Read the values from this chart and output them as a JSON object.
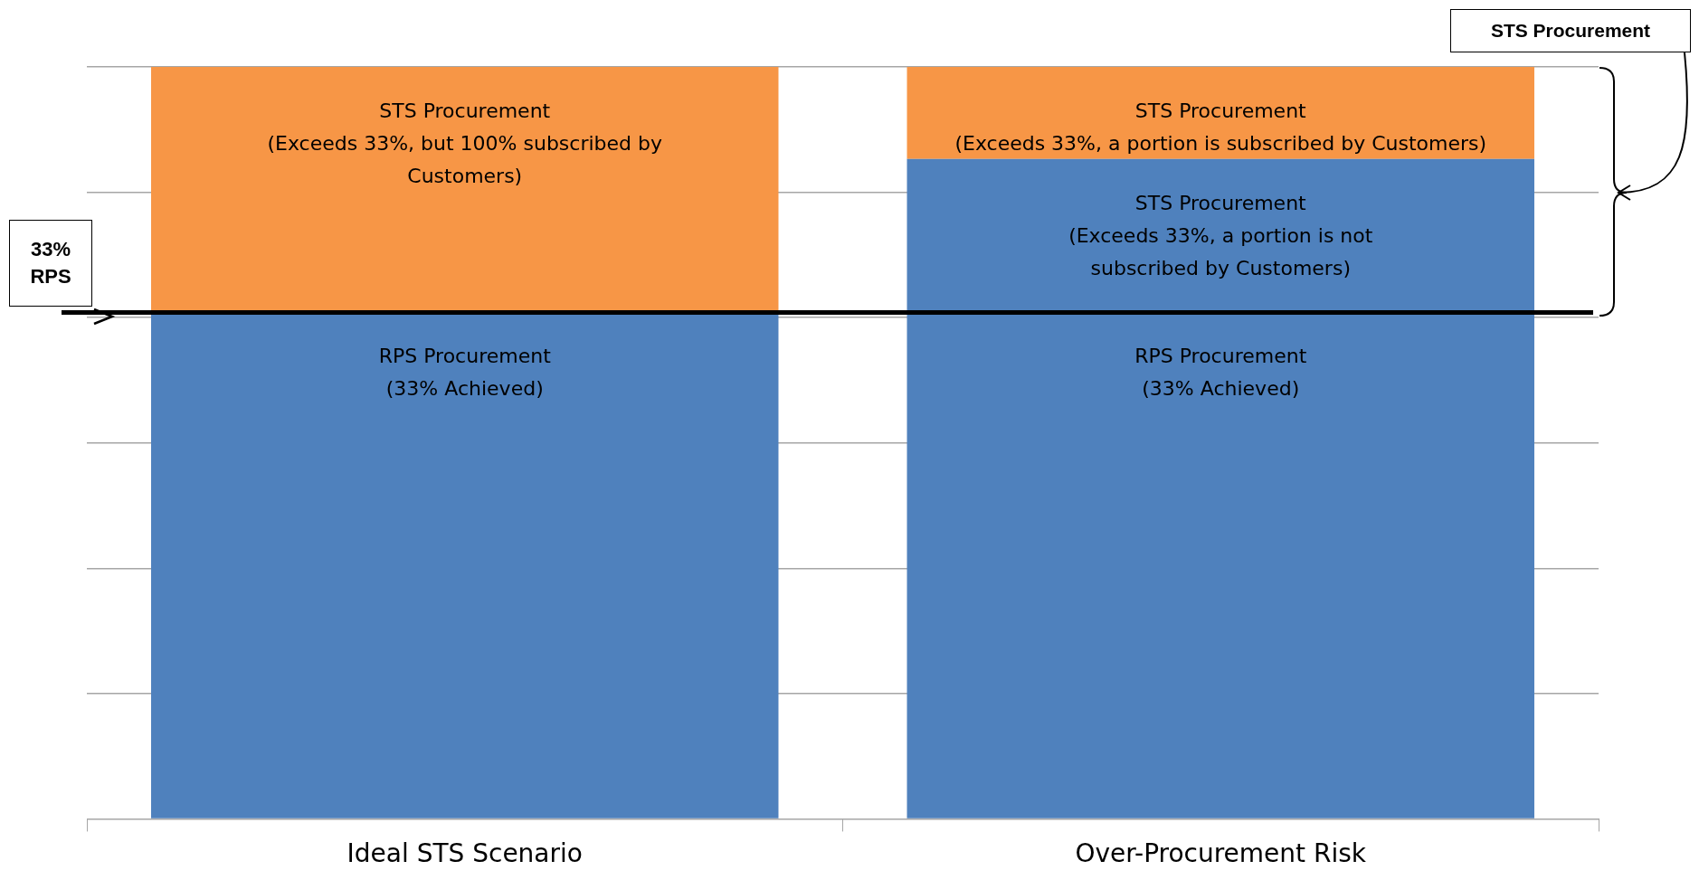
{
  "chart_data": {
    "type": "bar",
    "stacked": true,
    "tick_labels": "x",
    "grid": "y",
    "categories": [
      "Ideal STS Scenario",
      "Over-Procurement Risk"
    ],
    "series": [
      {
        "color": "#4f81bd",
        "values": [
          33,
          33
        ],
        "value_labels": [
          "RPS Procurement\n(33% Achieved)",
          "RPS Procurement\n(33% Achieved)"
        ]
      },
      {
        "color": "#4f81bd",
        "values": [
          0,
          10
        ]
      },
      {
        "color": "#f79646",
        "values": [
          16,
          6
        ]
      }
    ],
    "ref_lines": [
      {
        "axis": "y",
        "value": 33,
        "label": "33% RPS",
        "color": "#000000"
      }
    ],
    "annotations": [
      {
        "text": "STS Procurement\n(Exceeds 33%, but 100% subscribed by\nCustomers)",
        "x": "Ideal STS Scenario",
        "y": 49
      },
      {
        "text": "STS Procurement\n(Exceeds 33%, a portion is not\nsubscribed by Customers)",
        "x": "Over-Procurement Risk",
        "y": 43
      },
      {
        "text": "STS Procurement\n(Exceeds 33%, a portion is subscribed by Customers)",
        "x": "Over-Procurement Risk",
        "y": 49
      },
      "STS Procurement"
    ]
  }
}
